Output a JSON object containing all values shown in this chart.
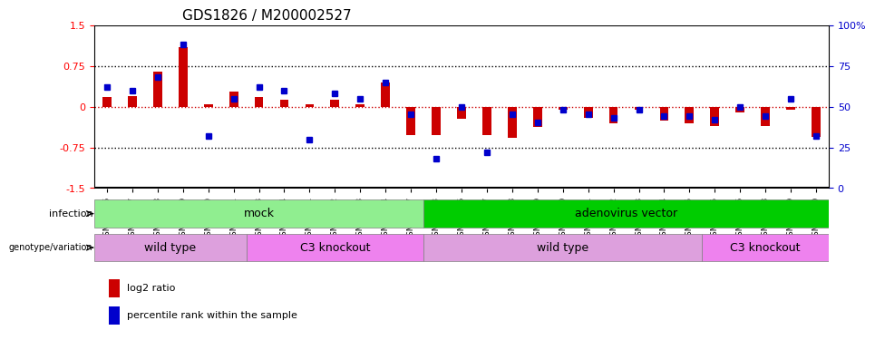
{
  "title": "GDS1826 / M200002527",
  "samples": [
    "GSM87316",
    "GSM87317",
    "GSM93998",
    "GSM93999",
    "GSM94000",
    "GSM94001",
    "GSM93633",
    "GSM93634",
    "GSM93651",
    "GSM93652",
    "GSM93653",
    "GSM93654",
    "GSM93657",
    "GSM86643",
    "GSM87306",
    "GSM87307",
    "GSM87308",
    "GSM87309",
    "GSM87310",
    "GSM87311",
    "GSM87312",
    "GSM87313",
    "GSM87314",
    "GSM87315",
    "GSM93655",
    "GSM93656",
    "GSM93658",
    "GSM93659",
    "GSM93660"
  ],
  "log2_ratio": [
    0.18,
    0.2,
    0.65,
    1.1,
    0.05,
    0.28,
    0.18,
    0.13,
    0.05,
    0.12,
    0.05,
    0.45,
    -0.52,
    -0.52,
    -0.22,
    -0.53,
    -0.58,
    -0.38,
    -0.05,
    -0.2,
    -0.3,
    -0.05,
    -0.25,
    -0.3,
    -0.35,
    -0.1,
    -0.35,
    -0.05,
    -0.55
  ],
  "percentile": [
    62,
    60,
    68,
    88,
    32,
    55,
    62,
    60,
    30,
    58,
    55,
    65,
    45,
    18,
    50,
    22,
    45,
    40,
    48,
    45,
    43,
    48,
    44,
    44,
    42,
    50,
    44,
    55,
    32
  ],
  "infection_groups": [
    {
      "label": "mock",
      "start": 0,
      "end": 13,
      "color": "#90EE90"
    },
    {
      "label": "adenovirus vector",
      "start": 13,
      "end": 29,
      "color": "#00CC00"
    }
  ],
  "genotype_groups": [
    {
      "label": "wild type",
      "start": 0,
      "end": 6,
      "color": "#DDA0DD"
    },
    {
      "label": "C3 knockout",
      "start": 6,
      "end": 13,
      "color": "#EE82EE"
    },
    {
      "label": "wild type",
      "start": 13,
      "end": 24,
      "color": "#DDA0DD"
    },
    {
      "label": "C3 knockout",
      "start": 24,
      "end": 29,
      "color": "#EE82EE"
    }
  ],
  "ylim": [
    -1.5,
    1.5
  ],
  "bar_color": "#CC0000",
  "dot_color": "#0000CC",
  "zero_line_color": "#CC0000",
  "hline_color": "black",
  "dotted_vals": [
    0.75,
    -0.75
  ],
  "right_axis_ticks": [
    0,
    25,
    50,
    75,
    100
  ],
  "right_axis_color": "#0000CC"
}
